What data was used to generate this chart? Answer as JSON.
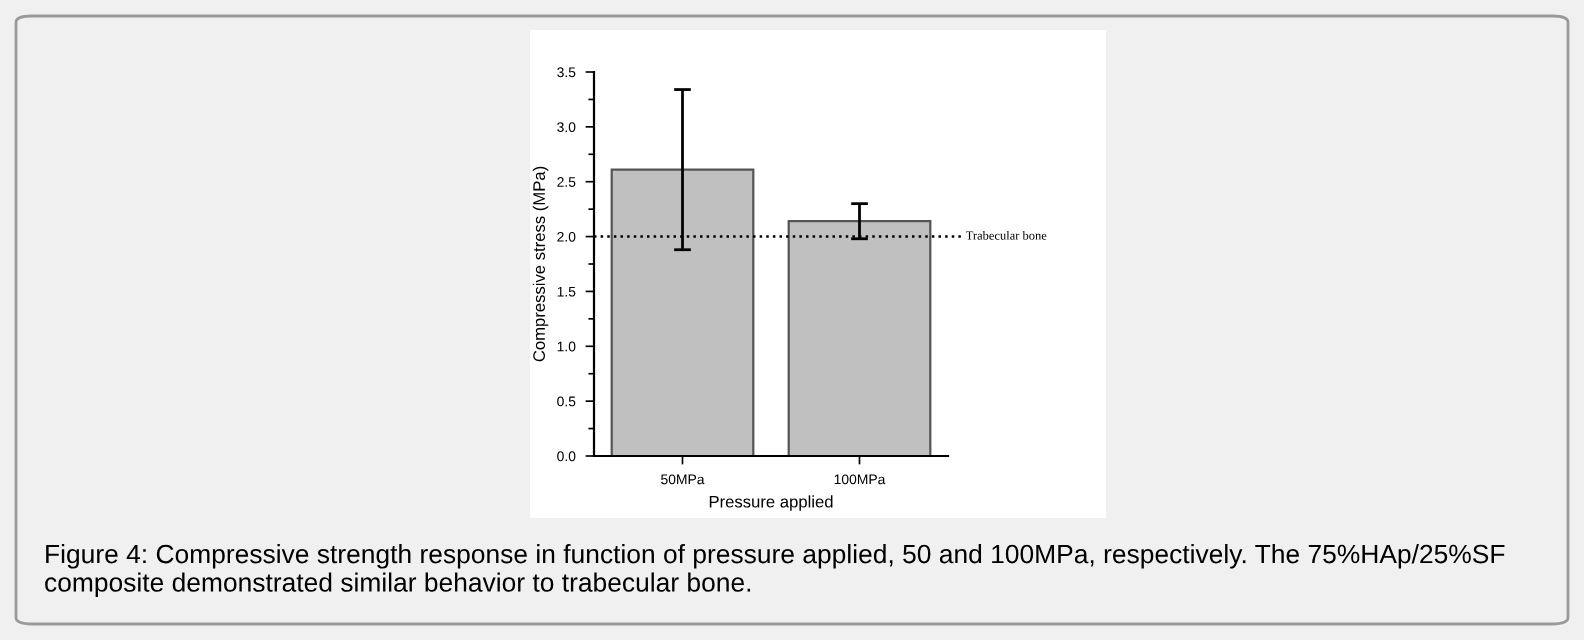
{
  "chart_data": {
    "type": "bar",
    "xlabel": "Pressure applied",
    "ylabel": "Compressive stress (MPa)",
    "categories": [
      "50MPa",
      "100MPa"
    ],
    "values": [
      2.61,
      2.14
    ],
    "errors": [
      [
        1.88,
        3.34
      ],
      [
        1.98,
        2.3
      ]
    ],
    "color": "#c0c0c0",
    "ylim": [
      0,
      3.5
    ],
    "yticks": [
      {
        "value": 0,
        "label": "0.0"
      },
      {
        "value": 0.5,
        "label": "0.5"
      },
      {
        "value": 1,
        "label": "1.0"
      },
      {
        "value": 1.5,
        "label": "1.5"
      },
      {
        "value": 2,
        "label": "2.0"
      },
      {
        "value": 2.5,
        "label": "2.5"
      },
      {
        "value": 3,
        "label": "3.0"
      },
      {
        "value": 3.5,
        "label": "3.5"
      }
    ],
    "ref_lines": [
      {
        "axis": "y",
        "value": 2.0,
        "label": "Trabecular bone",
        "color": "#000000",
        "line_style": "dotted"
      }
    ],
    "grid": false,
    "legend": false,
    "annotations": [
      "Figure 4: Compressive strength response in function of pressure applied, 50 and 100MPa, respectively. The 75%HAp/25%SF composite demonstrated similar behavior to trabecular bone."
    ]
  }
}
